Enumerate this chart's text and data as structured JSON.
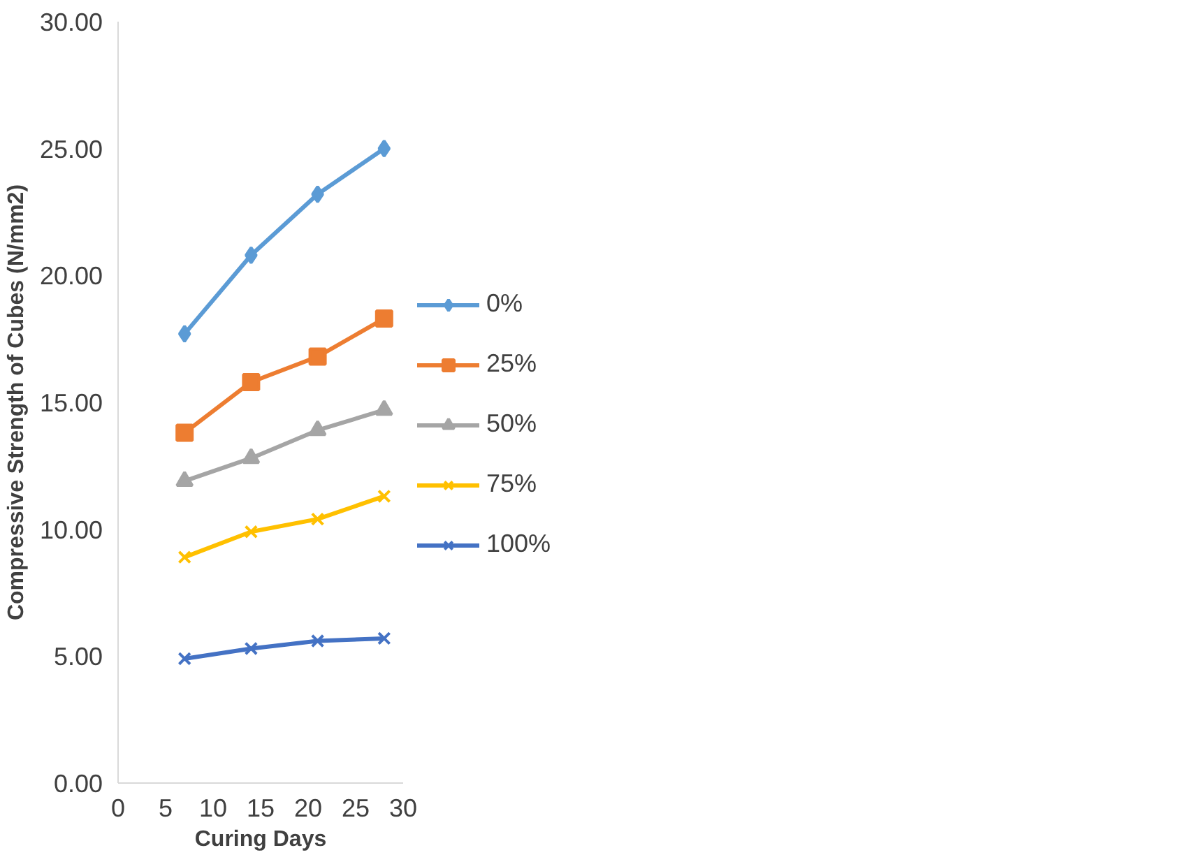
{
  "chart_data": {
    "type": "line",
    "xlabel": "Curing Days",
    "ylabel": "Compressive Strength of Cubes (N/mm2)",
    "x": [
      7,
      14,
      21,
      28
    ],
    "series": [
      {
        "name": "0%",
        "color": "#5b9bd5",
        "marker": "diamond",
        "values": [
          17.7,
          20.8,
          23.2,
          25.0
        ]
      },
      {
        "name": "25%",
        "color": "#ed7d31",
        "marker": "square",
        "values": [
          13.8,
          15.8,
          16.8,
          18.3
        ]
      },
      {
        "name": "50%",
        "color": "#a5a5a5",
        "marker": "triangle",
        "values": [
          11.9,
          12.8,
          13.9,
          14.7
        ]
      },
      {
        "name": "75%",
        "color": "#ffc000",
        "marker": "cross",
        "values": [
          8.9,
          9.9,
          10.4,
          11.3
        ]
      },
      {
        "name": "100%",
        "color": "#4472c4",
        "marker": "cross",
        "values": [
          4.9,
          5.3,
          5.6,
          5.7
        ]
      }
    ],
    "xlim": [
      0,
      30
    ],
    "xticks": [
      0,
      5,
      10,
      15,
      20,
      25,
      30
    ],
    "ylim": [
      0,
      30
    ],
    "yticks": [
      {
        "value": 0,
        "label": "0.00"
      },
      {
        "value": 5,
        "label": "5.00"
      },
      {
        "value": 10,
        "label": "10.00"
      },
      {
        "value": 15,
        "label": "15.00"
      },
      {
        "value": 20,
        "label": "20.00"
      },
      {
        "value": 25,
        "label": "25.00"
      },
      {
        "value": 30,
        "label": "30.00"
      }
    ],
    "grid": false,
    "legend": "right",
    "line_style": "solid"
  }
}
